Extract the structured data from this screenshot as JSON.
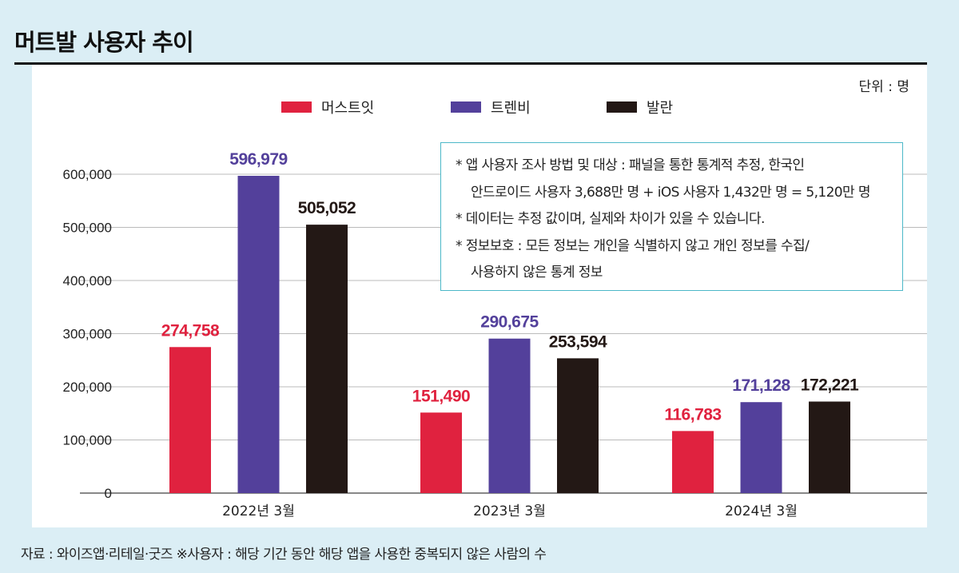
{
  "title": "머트발 사용자 추이",
  "unit": "단위 : 명",
  "notes": [
    "* 앱 사용자 조사 방법 및 대상 : 패널을 통한 통계적 추정, 한국인",
    "안드로이드 사용자 3,688만 명 + iOS 사용자 1,432만 명 = 5,120만 명",
    "* 데이터는 추정 값이며, 실제와 차이가 있을 수 있습니다.",
    "* 정보보호 : 모든 정보는 개인을 식별하지 않고 개인 정보를 수집/",
    "사용하지 않은 통계 정보"
  ],
  "footer": "자료 : 와이즈앱·리테일·굿즈 ※사용자 : 해당 기간 동안 해당 앱을 사용한 중복되지 않은 사람의 수",
  "chart_data": {
    "type": "bar",
    "title": "머트발 사용자 추이",
    "categories": [
      "2022년 3월",
      "2023년 3월",
      "2024년 3월"
    ],
    "series": [
      {
        "name": "머스트잇",
        "color": "#e0223f",
        "values": [
          274758,
          151490,
          116783
        ]
      },
      {
        "name": "트렌비",
        "color": "#53409b",
        "values": [
          596979,
          290675,
          171128
        ]
      },
      {
        "name": "발란",
        "color": "#231815",
        "values": [
          505052,
          253594,
          172221
        ]
      }
    ],
    "yticks": [
      "0",
      "100,000",
      "200,000",
      "300,000",
      "400,000",
      "500,000",
      "600,000"
    ],
    "ylim": [
      0,
      600000
    ],
    "grid": true,
    "legend": "top"
  }
}
